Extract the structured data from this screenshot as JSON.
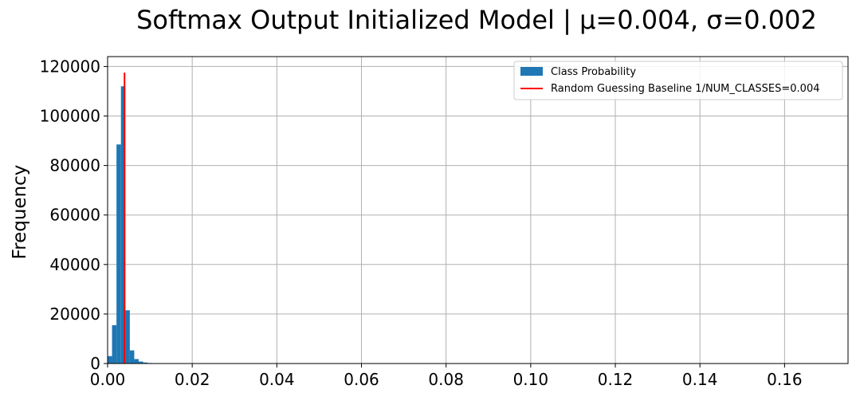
{
  "chart_data": {
    "type": "bar",
    "title": "Softmax Output Initialized Model | μ=0.004, σ=0.002",
    "xlabel": "",
    "ylabel": "Frequency",
    "xlim": [
      0.0,
      0.175
    ],
    "ylim": [
      0,
      124000
    ],
    "xticks": [
      0.0,
      0.02,
      0.04,
      0.06,
      0.08,
      0.1,
      0.12,
      0.14,
      0.16
    ],
    "xtick_labels": [
      "0.00",
      "0.02",
      "0.04",
      "0.06",
      "0.08",
      "0.10",
      "0.12",
      "0.14",
      "0.16"
    ],
    "yticks": [
      0,
      20000,
      40000,
      60000,
      80000,
      100000,
      120000
    ],
    "ytick_labels": [
      "0",
      "20000",
      "40000",
      "60000",
      "80000",
      "100000",
      "120000"
    ],
    "grid": true,
    "legend_position": "top-right",
    "histogram": {
      "name": "Class Probability",
      "color": "#1f77b4",
      "bin_width": 0.00105,
      "bin_starts": [
        0.0,
        0.00105,
        0.0021,
        0.00315,
        0.0042,
        0.00525,
        0.0063,
        0.00735,
        0.0084,
        0.00945,
        0.0105,
        0.01155,
        0.0126
      ],
      "counts": [
        3000,
        15500,
        88500,
        112000,
        21500,
        5300,
        1800,
        800,
        400,
        200,
        100,
        60,
        30
      ]
    },
    "baseline": {
      "name": "Random Guessing Baseline 1/NUM_CLASSES=0.004",
      "color": "#ff0000",
      "x": 0.004,
      "y_range": [
        0,
        117500
      ]
    }
  }
}
